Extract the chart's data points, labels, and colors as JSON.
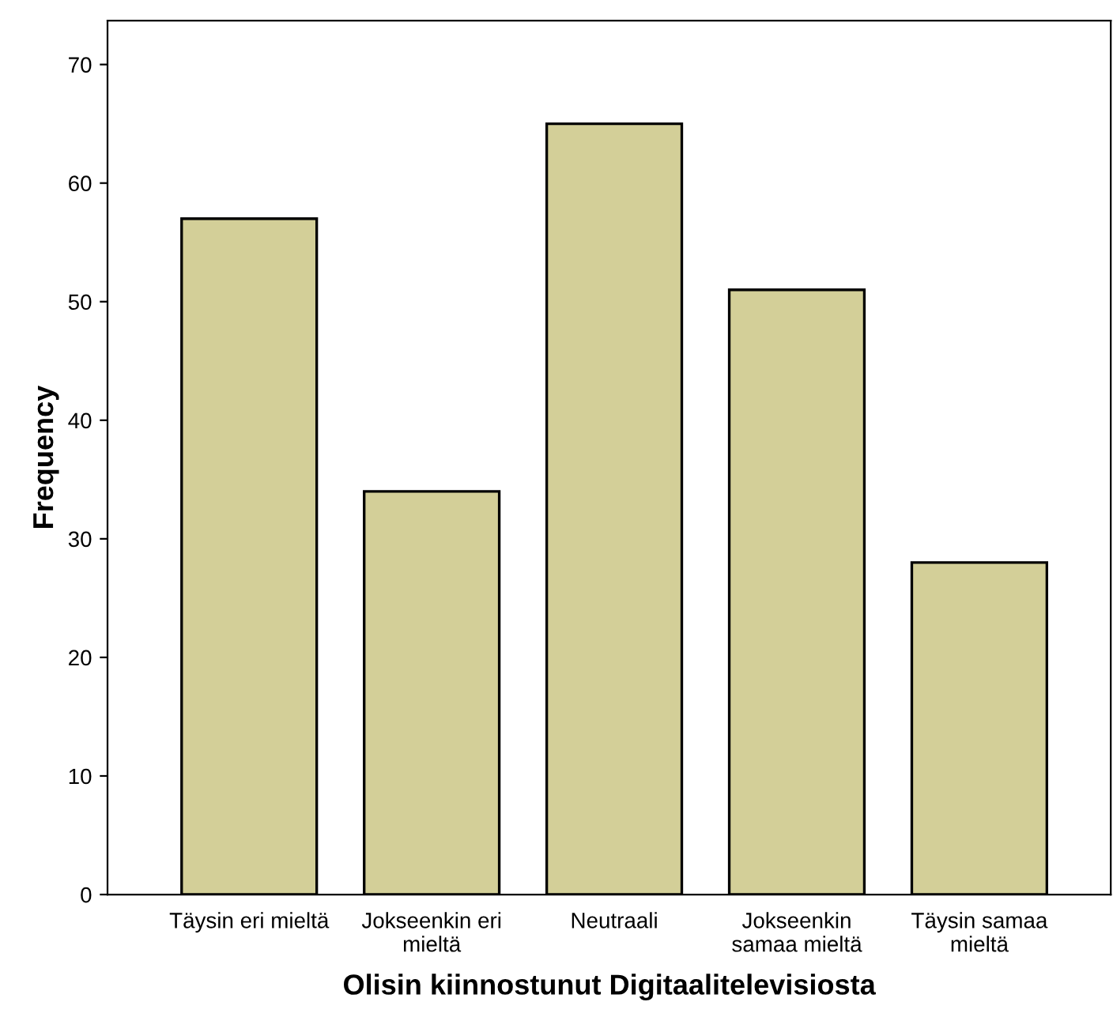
{
  "chart_data": {
    "type": "bar",
    "xlabel": "Olisin kiinnostunut Digitaalitelevisiosta",
    "ylabel": "Frequency",
    "categories": [
      "Täysin eri mieltä",
      "Jokseenkin eri\nmieltä",
      "Neutraali",
      "Jokseenkin\nsamaa mieltä",
      "Täysin samaa\nmieltä"
    ],
    "values": [
      57,
      34,
      65,
      51,
      28
    ],
    "color": "#d3cf98",
    "ylim": [
      0,
      73.7
    ],
    "yticks": [
      0,
      10,
      20,
      30,
      40,
      50,
      60,
      70
    ],
    "grid": false
  }
}
